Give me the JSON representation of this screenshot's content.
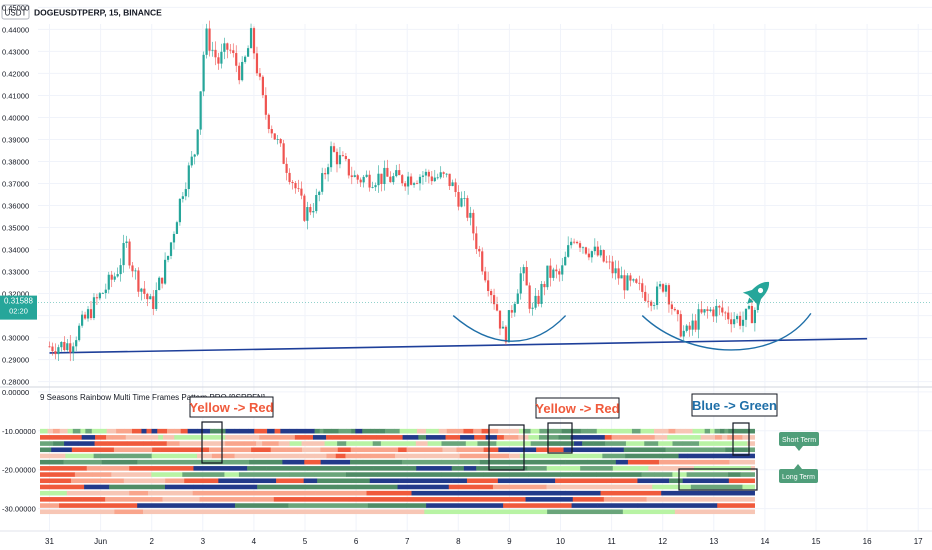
{
  "header": {
    "currency_badge": "USDT",
    "symbol_line": "DOGEUSDTPERP, 15, BINANCE"
  },
  "price_tag": {
    "price": "0.31588",
    "countdown": "02:20"
  },
  "indicator": {
    "title": "9 Seasons Rainbow Multi Time Frames Pattern PRO [9SRPFN]"
  },
  "annotations": {
    "yellow_red_1": "Yellow -> Red",
    "yellow_red_2": "Yellow -> Red",
    "blue_green": "Blue -> Green",
    "short_term": "Short Term",
    "long_term": "Long Term"
  },
  "colors": {
    "candle_up": "#26a69a",
    "candle_down": "#ef5350",
    "trendline": "#1e3f9a",
    "curve": "#1f6fa8",
    "rocket": "#26a69a",
    "label_box": "#4f9e7a",
    "callout_red": "#f05a3c",
    "callout_blue": "#1f6fa8",
    "band_palette": [
      "#f05a3c",
      "#f9a58c",
      "#f7c6b5",
      "#b8f3a4",
      "#6aa57a",
      "#4f8c66",
      "#223a8a"
    ]
  },
  "chart_data": [
    {
      "type": "candlestick",
      "title": "DOGEUSDTPERP, 15, BINANCE",
      "ylabel": "USDT",
      "ylim": [
        0.278,
        0.452
      ],
      "y_ticks": [
        "0.45000",
        "0.44000",
        "0.43000",
        "0.42000",
        "0.41000",
        "0.40000",
        "0.39000",
        "0.38000",
        "0.37000",
        "0.36000",
        "0.35000",
        "0.34000",
        "0.33000",
        "0.32000",
        "0.31000",
        "0.30000",
        "0.29000",
        "0.28000"
      ],
      "x_ticks": [
        "31",
        "Jun",
        "2",
        "3",
        "4",
        "5",
        "6",
        "7",
        "8",
        "9",
        "10",
        "11",
        "12",
        "13",
        "14",
        "15",
        "16",
        "17"
      ],
      "last_price": 0.31588,
      "price_path": [
        {
          "x": 0.0,
          "y": 0.296
        },
        {
          "x": 0.4,
          "y": 0.297
        },
        {
          "x": 0.9,
          "y": 0.316
        },
        {
          "x": 1.3,
          "y": 0.329
        },
        {
          "x": 1.5,
          "y": 0.342
        },
        {
          "x": 1.7,
          "y": 0.327
        },
        {
          "x": 2.0,
          "y": 0.314
        },
        {
          "x": 2.3,
          "y": 0.335
        },
        {
          "x": 2.6,
          "y": 0.367
        },
        {
          "x": 2.85,
          "y": 0.385
        },
        {
          "x": 3.05,
          "y": 0.438
        },
        {
          "x": 3.3,
          "y": 0.425
        },
        {
          "x": 3.5,
          "y": 0.432
        },
        {
          "x": 3.75,
          "y": 0.419
        },
        {
          "x": 3.95,
          "y": 0.437
        },
        {
          "x": 4.2,
          "y": 0.404
        },
        {
          "x": 4.5,
          "y": 0.386
        },
        {
          "x": 4.75,
          "y": 0.372
        },
        {
          "x": 5.0,
          "y": 0.356
        },
        {
          "x": 5.25,
          "y": 0.363
        },
        {
          "x": 5.5,
          "y": 0.385
        },
        {
          "x": 5.75,
          "y": 0.379
        },
        {
          "x": 6.0,
          "y": 0.372
        },
        {
          "x": 6.4,
          "y": 0.373
        },
        {
          "x": 6.8,
          "y": 0.372
        },
        {
          "x": 7.3,
          "y": 0.374
        },
        {
          "x": 7.8,
          "y": 0.372
        },
        {
          "x": 8.2,
          "y": 0.356
        },
        {
          "x": 8.45,
          "y": 0.335
        },
        {
          "x": 8.75,
          "y": 0.314
        },
        {
          "x": 8.9,
          "y": 0.299
        },
        {
          "x": 9.05,
          "y": 0.314
        },
        {
          "x": 9.25,
          "y": 0.331
        },
        {
          "x": 9.45,
          "y": 0.311
        },
        {
          "x": 9.75,
          "y": 0.329
        },
        {
          "x": 10.0,
          "y": 0.328
        },
        {
          "x": 10.25,
          "y": 0.347
        },
        {
          "x": 10.5,
          "y": 0.341
        },
        {
          "x": 10.75,
          "y": 0.337
        },
        {
          "x": 11.0,
          "y": 0.331
        },
        {
          "x": 11.3,
          "y": 0.324
        },
        {
          "x": 11.6,
          "y": 0.321
        },
        {
          "x": 11.85,
          "y": 0.318
        },
        {
          "x": 12.05,
          "y": 0.326
        },
        {
          "x": 12.25,
          "y": 0.308
        },
        {
          "x": 12.45,
          "y": 0.301
        },
        {
          "x": 12.7,
          "y": 0.309
        },
        {
          "x": 13.0,
          "y": 0.313
        },
        {
          "x": 13.3,
          "y": 0.31
        },
        {
          "x": 13.55,
          "y": 0.308
        },
        {
          "x": 13.75,
          "y": 0.311
        },
        {
          "x": 13.9,
          "y": 0.316
        }
      ],
      "trendline": [
        {
          "x": 0.0,
          "y": 0.293
        },
        {
          "x": 16.0,
          "y": 0.2995
        }
      ],
      "annotation_curves": [
        {
          "points": [
            {
              "x": 7.9,
              "y": 0.31
            },
            {
              "x": 8.6,
              "y": 0.296
            },
            {
              "x": 9.4,
              "y": 0.293
            },
            {
              "x": 10.1,
              "y": 0.31
            }
          ]
        },
        {
          "points": [
            {
              "x": 11.6,
              "y": 0.31
            },
            {
              "x": 12.5,
              "y": 0.29
            },
            {
              "x": 14.2,
              "y": 0.288
            },
            {
              "x": 14.9,
              "y": 0.311
            }
          ]
        }
      ]
    },
    {
      "type": "heatmap",
      "title": "9 Seasons Rainbow Multi Time Frames Pattern PRO [9SRPFN]",
      "ylim": [
        -36,
        1
      ],
      "y_ticks": [
        "0.00000",
        "-10.00000",
        "-20.00000",
        "-30.00000"
      ],
      "rows": 14,
      "x_end": 13.8,
      "legend": [
        "Short Term",
        "Long Term"
      ]
    }
  ]
}
